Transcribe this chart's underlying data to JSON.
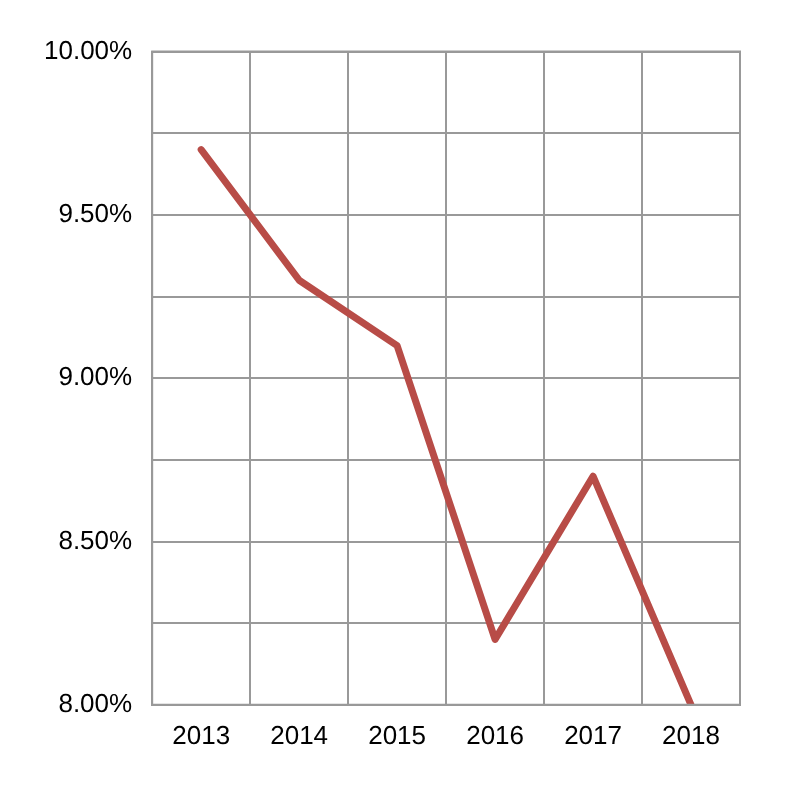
{
  "chart_data": {
    "type": "line",
    "categories": [
      "2013",
      "2014",
      "2015",
      "2016",
      "2017",
      "2018"
    ],
    "series": [
      {
        "color": "#b84c47",
        "values": [
          9.7,
          9.3,
          9.1,
          8.2,
          8.7,
          8.0
        ]
      }
    ],
    "ylim": [
      8.0,
      10.0
    ],
    "yticks": [
      {
        "value": 8.0,
        "label": "8.00%"
      },
      {
        "value": 8.25,
        "label": null
      },
      {
        "value": 8.5,
        "label": "8.50%"
      },
      {
        "value": 8.75,
        "label": null
      },
      {
        "value": 9.0,
        "label": "9.00%"
      },
      {
        "value": 9.25,
        "label": null
      },
      {
        "value": 9.5,
        "label": "9.50%"
      },
      {
        "value": 9.75,
        "label": null
      },
      {
        "value": 10.0,
        "label": "10.00%"
      }
    ],
    "grid": true,
    "legend": false,
    "marker": "none",
    "line_style": "solid"
  }
}
